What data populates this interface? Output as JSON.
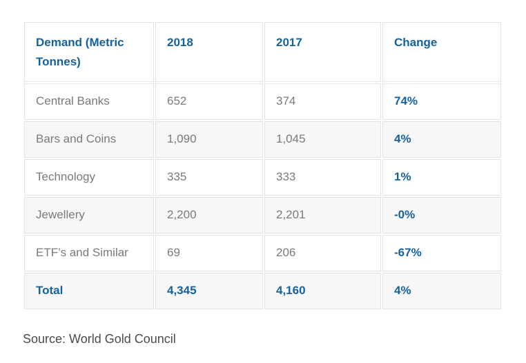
{
  "colors": {
    "header_blue": "#16619c",
    "body_gray": "#7a7a7a",
    "source_gray": "#4b4b4b",
    "border_gray": "#e2e2e2",
    "stripe_bg": "#f7f7f7",
    "page_bg": "#ffffff"
  },
  "table": {
    "headers": {
      "demand": "Demand (Metric Tonnes)",
      "y2018": "2018",
      "y2017": "2017",
      "change": "Change"
    },
    "rows": [
      {
        "label": "Central Banks",
        "y2018": "652",
        "y2017": "374",
        "change": "74%"
      },
      {
        "label": "Bars and Coins",
        "y2018": "1,090",
        "y2017": "1,045",
        "change": "4%"
      },
      {
        "label": "Technology",
        "y2018": "335",
        "y2017": "333",
        "change": "1%"
      },
      {
        "label": "Jewellery",
        "y2018": "2,200",
        "y2017": "2,201",
        "change": "-0%"
      },
      {
        "label": "ETF’s and Similar",
        "y2018": "69",
        "y2017": "206",
        "change": "-67%"
      },
      {
        "label": "Total",
        "y2018": "4,345",
        "y2017": "4,160",
        "change": "4%"
      }
    ]
  },
  "source": {
    "text": "Source: World Gold Council"
  },
  "chart_data": {
    "type": "table",
    "title": "Demand (Metric Tonnes)",
    "columns": [
      "Demand (Metric Tonnes)",
      "2018",
      "2017",
      "Change"
    ],
    "rows": [
      [
        "Central Banks",
        652,
        374,
        "74%"
      ],
      [
        "Bars and Coins",
        1090,
        1045,
        "4%"
      ],
      [
        "Technology",
        335,
        333,
        "1%"
      ],
      [
        "Jewellery",
        2200,
        2201,
        "-0%"
      ],
      [
        "ETF’s and Similar",
        69,
        206,
        "-67%"
      ],
      [
        "Total",
        4345,
        4160,
        "4%"
      ]
    ],
    "source": "Source: World Gold Council",
    "layout": {
      "striped_rows": [
        1,
        3,
        5
      ],
      "emphasis_column": "Change",
      "emphasis_row": "Total"
    }
  }
}
